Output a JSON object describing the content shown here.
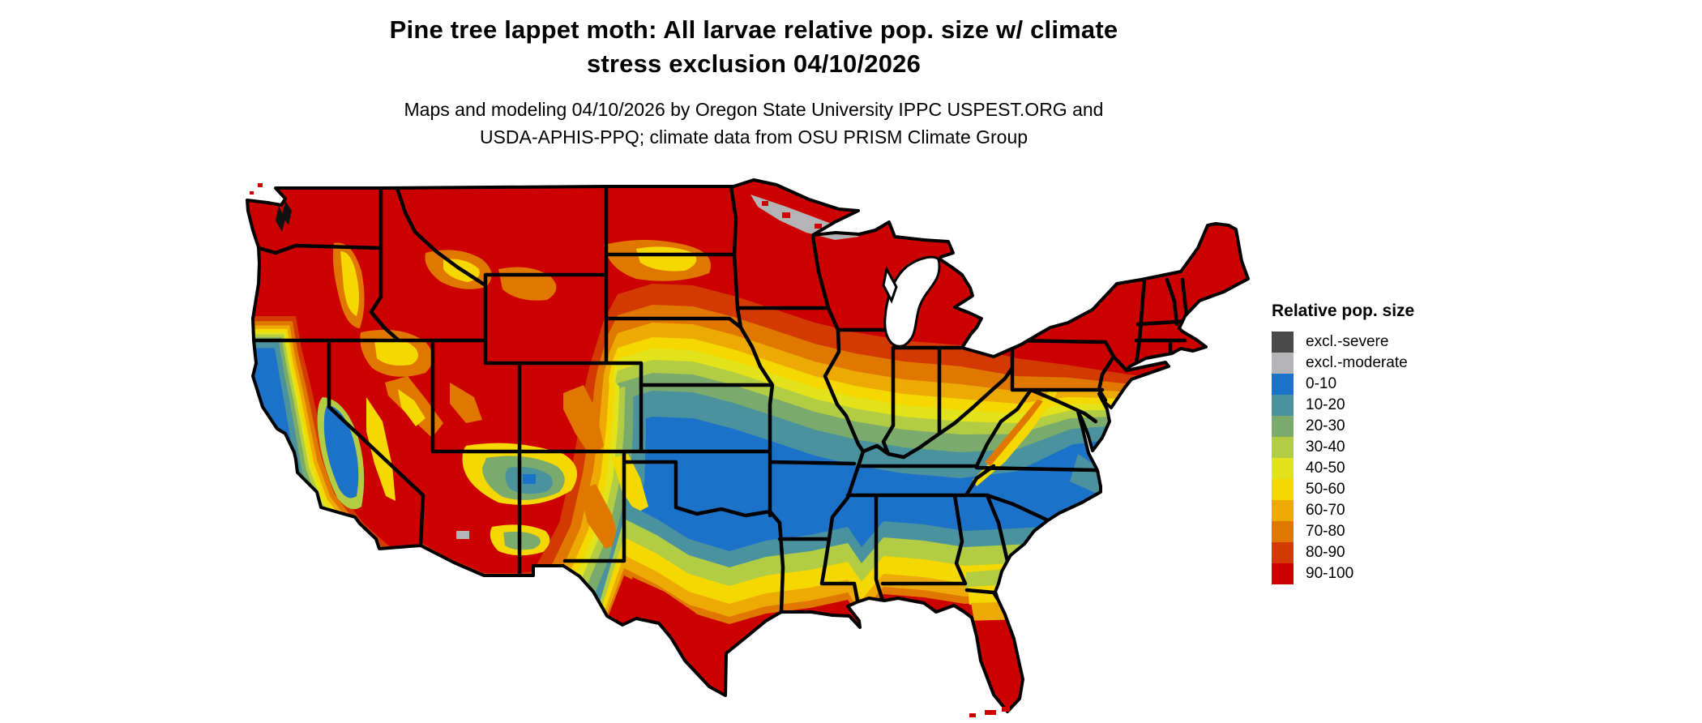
{
  "title": {
    "line1": "Pine tree lappet moth: All larvae relative pop. size w/ climate",
    "line2": "stress exclusion 04/10/2026"
  },
  "subtitle": {
    "line1": "Maps and modeling 04/10/2026 by Oregon State University IPPC USPEST.ORG and",
    "line2": "USDA-APHIS-PPQ; climate data from OSU PRISM Climate Group"
  },
  "legend": {
    "title": "Relative pop. size",
    "items": [
      {
        "label": "excl.-severe",
        "color": "#4a4a4a"
      },
      {
        "label": "excl.-moderate",
        "color": "#b4b4b6"
      },
      {
        "label": "0-10",
        "color": "#1c72c9"
      },
      {
        "label": "10-20",
        "color": "#4a929e"
      },
      {
        "label": "20-30",
        "color": "#7bab6c"
      },
      {
        "label": "30-40",
        "color": "#b2cc44"
      },
      {
        "label": "40-50",
        "color": "#e3e31c"
      },
      {
        "label": "50-60",
        "color": "#f5d800"
      },
      {
        "label": "60-70",
        "color": "#eda904"
      },
      {
        "label": "70-80",
        "color": "#e07800"
      },
      {
        "label": "80-90",
        "color": "#d23a02"
      },
      {
        "label": "90-100",
        "color": "#cc0000"
      }
    ]
  },
  "map": {
    "area": "Contiguous United States",
    "state_border_color": "#000000",
    "water_color": "#ffffff",
    "high_value_color": "#cc0000",
    "low_value_color": "#1c72c9",
    "excluded_moderate_area_visible": "northern Minnesota"
  }
}
